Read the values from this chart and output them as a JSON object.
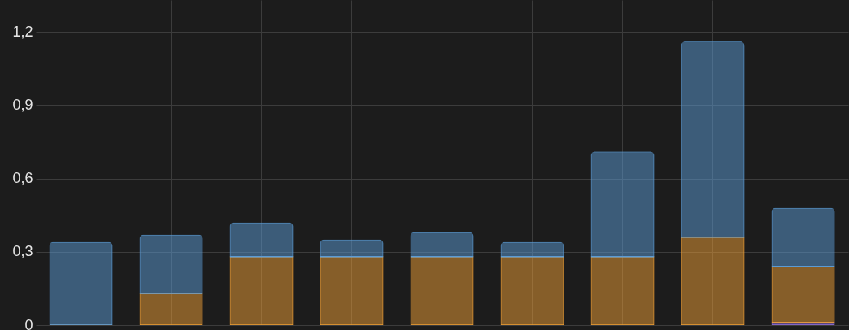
{
  "chart_data": {
    "type": "bar",
    "stacked": true,
    "categories": [
      null,
      null,
      null,
      null,
      null,
      null,
      null,
      null,
      null
    ],
    "series": [
      {
        "color": "#9370db",
        "values": [
          null,
          null,
          null,
          null,
          null,
          null,
          null,
          null,
          0.01
        ]
      },
      {
        "color": "#f0a035",
        "values": [
          0,
          0.13,
          0.28,
          0.28,
          0.28,
          0.28,
          0.28,
          0.36,
          0.23
        ]
      },
      {
        "color": "#5b9bd5",
        "values": [
          0.34,
          0.24,
          0.14,
          0.07,
          0.1,
          0.06,
          0.43,
          0.8,
          0.24
        ]
      }
    ],
    "ylim": [
      0,
      1.33
    ],
    "yticks": [
      {
        "value": 0,
        "label": "0"
      },
      {
        "value": 0.3,
        "label": "0,3"
      },
      {
        "value": 0.6,
        "label": "0,6"
      },
      {
        "value": 0.9,
        "label": "0,9"
      },
      {
        "value": 1.2,
        "label": "1,2"
      }
    ],
    "grid": true,
    "tick_labels": "y"
  }
}
